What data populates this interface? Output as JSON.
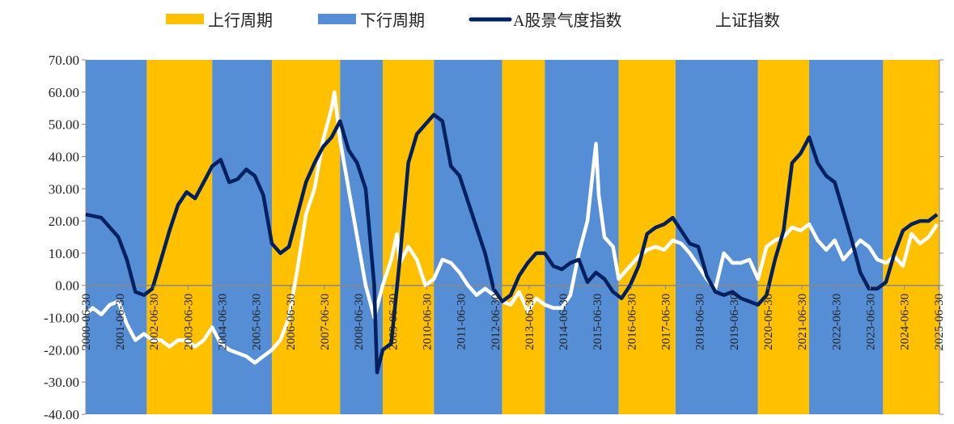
{
  "chart_data": {
    "type": "line",
    "title": "",
    "xlabel": "",
    "ylabel": "",
    "ylim": [
      -40,
      70
    ],
    "yticks": [
      "70.00",
      "60.00",
      "50.00",
      "40.00",
      "30.00",
      "20.00",
      "10.00",
      "0.00",
      "-10.00",
      "-20.00",
      "-30.00",
      "-40.00"
    ],
    "xticks": [
      "2000-06-30",
      "2001-06-30",
      "2002-06-30",
      "2003-06-30",
      "2004-06-30",
      "2005-06-30",
      "2006-06-30",
      "2007-06-30",
      "2008-06-30",
      "2009-06-30",
      "2010-06-30",
      "2011-06-30",
      "2012-06-30",
      "2013-06-30",
      "2014-06-30",
      "2015-06-30",
      "2016-06-30",
      "2017-06-30",
      "2018-06-30",
      "2019-06-30",
      "2020-06-30",
      "2021-06-30",
      "2022-06-30",
      "2023-06-30",
      "2024-06-30",
      "2025-06-30"
    ],
    "grid": false,
    "legend_position": "top",
    "legend": [
      {
        "label": "上行周期",
        "kind": "band",
        "color": "#FFC000"
      },
      {
        "label": "下行周期",
        "kind": "band",
        "color": "#558ED5"
      },
      {
        "label": "A股景气度指数",
        "kind": "line",
        "color": "#002060"
      },
      {
        "label": "上证指数",
        "kind": "line",
        "color": "#FFFFFF"
      }
    ],
    "bands": [
      {
        "start": "2000-06",
        "end": "2002-04",
        "type": "下行周期"
      },
      {
        "start": "2002-04",
        "end": "2004-03",
        "type": "上行周期"
      },
      {
        "start": "2004-03",
        "end": "2005-12",
        "type": "下行周期"
      },
      {
        "start": "2005-12",
        "end": "2007-12",
        "type": "上行周期"
      },
      {
        "start": "2007-12",
        "end": "2009-03",
        "type": "下行周期"
      },
      {
        "start": "2009-03",
        "end": "2010-09",
        "type": "上行周期"
      },
      {
        "start": "2010-09",
        "end": "2012-09",
        "type": "下行周期"
      },
      {
        "start": "2012-09",
        "end": "2013-12",
        "type": "上行周期"
      },
      {
        "start": "2013-12",
        "end": "2016-02",
        "type": "下行周期"
      },
      {
        "start": "2016-02",
        "end": "2017-10",
        "type": "上行周期"
      },
      {
        "start": "2017-10",
        "end": "2020-03",
        "type": "下行周期"
      },
      {
        "start": "2020-03",
        "end": "2021-09",
        "type": "上行周期"
      },
      {
        "start": "2021-09",
        "end": "2023-11",
        "type": "下行周期"
      },
      {
        "start": "2023-11",
        "end": "2025-07",
        "type": "上行周期"
      }
    ],
    "series": [
      {
        "name": "A股景气度指数",
        "color": "#002060",
        "points": [
          [
            "2000-06",
            22
          ],
          [
            "2000-12",
            21
          ],
          [
            "2001-06",
            15
          ],
          [
            "2001-09",
            8
          ],
          [
            "2001-12",
            -2
          ],
          [
            "2002-03",
            -3
          ],
          [
            "2002-06",
            -1
          ],
          [
            "2002-09",
            8
          ],
          [
            "2002-12",
            17
          ],
          [
            "2003-03",
            25
          ],
          [
            "2003-06",
            29
          ],
          [
            "2003-09",
            27
          ],
          [
            "2003-12",
            32
          ],
          [
            "2004-03",
            37
          ],
          [
            "2004-06",
            39
          ],
          [
            "2004-09",
            32
          ],
          [
            "2004-12",
            33
          ],
          [
            "2005-03",
            36
          ],
          [
            "2005-06",
            34
          ],
          [
            "2005-09",
            28
          ],
          [
            "2005-12",
            13
          ],
          [
            "2006-03",
            10
          ],
          [
            "2006-06",
            12
          ],
          [
            "2006-09",
            22
          ],
          [
            "2006-12",
            32
          ],
          [
            "2007-03",
            38
          ],
          [
            "2007-06",
            43
          ],
          [
            "2007-09",
            46
          ],
          [
            "2007-12",
            51
          ],
          [
            "2008-03",
            42
          ],
          [
            "2008-06",
            38
          ],
          [
            "2008-09",
            30
          ],
          [
            "2008-12",
            0
          ],
          [
            "2009-01",
            -27
          ],
          [
            "2009-03",
            -20
          ],
          [
            "2009-06",
            -18
          ],
          [
            "2009-09",
            8
          ],
          [
            "2009-12",
            38
          ],
          [
            "2010-03",
            47
          ],
          [
            "2010-06",
            50
          ],
          [
            "2010-09",
            53
          ],
          [
            "2010-12",
            51
          ],
          [
            "2011-03",
            37
          ],
          [
            "2011-06",
            34
          ],
          [
            "2011-09",
            26
          ],
          [
            "2011-12",
            18
          ],
          [
            "2012-03",
            10
          ],
          [
            "2012-06",
            -1
          ],
          [
            "2012-09",
            -5
          ],
          [
            "2012-12",
            -3
          ],
          [
            "2013-03",
            3
          ],
          [
            "2013-06",
            7
          ],
          [
            "2013-09",
            10
          ],
          [
            "2013-12",
            10
          ],
          [
            "2014-03",
            6
          ],
          [
            "2014-06",
            5
          ],
          [
            "2014-09",
            7
          ],
          [
            "2014-12",
            8
          ],
          [
            "2015-03",
            1
          ],
          [
            "2015-06",
            4
          ],
          [
            "2015-09",
            2
          ],
          [
            "2015-12",
            -2
          ],
          [
            "2016-03",
            -4
          ],
          [
            "2016-06",
            0
          ],
          [
            "2016-09",
            6
          ],
          [
            "2016-12",
            16
          ],
          [
            "2017-03",
            18
          ],
          [
            "2017-06",
            19
          ],
          [
            "2017-09",
            21
          ],
          [
            "2017-12",
            17
          ],
          [
            "2018-03",
            13
          ],
          [
            "2018-06",
            12
          ],
          [
            "2018-09",
            3
          ],
          [
            "2018-12",
            -2
          ],
          [
            "2019-03",
            -3
          ],
          [
            "2019-06",
            -2
          ],
          [
            "2019-09",
            -4
          ],
          [
            "2019-12",
            -5
          ],
          [
            "2020-03",
            -6
          ],
          [
            "2020-06",
            -3
          ],
          [
            "2020-09",
            8
          ],
          [
            "2020-12",
            17
          ],
          [
            "2021-03",
            38
          ],
          [
            "2021-06",
            41
          ],
          [
            "2021-09",
            46
          ],
          [
            "2021-12",
            38
          ],
          [
            "2022-03",
            34
          ],
          [
            "2022-06",
            32
          ],
          [
            "2022-09",
            23
          ],
          [
            "2022-12",
            14
          ],
          [
            "2023-03",
            4
          ],
          [
            "2023-06",
            -1
          ],
          [
            "2023-09",
            -1
          ],
          [
            "2023-12",
            1
          ],
          [
            "2024-03",
            10
          ],
          [
            "2024-06",
            17
          ],
          [
            "2024-09",
            19
          ],
          [
            "2024-12",
            20
          ],
          [
            "2025-03",
            20
          ],
          [
            "2025-06",
            22
          ]
        ]
      },
      {
        "name": "上证指数",
        "color": "#FFFFFF",
        "points": [
          [
            "2000-06",
            -9
          ],
          [
            "2000-09",
            -7
          ],
          [
            "2000-12",
            -9
          ],
          [
            "2001-03",
            -6
          ],
          [
            "2001-06",
            -5
          ],
          [
            "2001-09",
            -12
          ],
          [
            "2001-12",
            -17
          ],
          [
            "2002-03",
            -15
          ],
          [
            "2002-06",
            -17
          ],
          [
            "2002-09",
            -17
          ],
          [
            "2002-12",
            -19
          ],
          [
            "2003-03",
            -17
          ],
          [
            "2003-06",
            -17
          ],
          [
            "2003-09",
            -19
          ],
          [
            "2003-12",
            -17
          ],
          [
            "2004-03",
            -13
          ],
          [
            "2004-06",
            -18
          ],
          [
            "2004-09",
            -20
          ],
          [
            "2004-12",
            -21
          ],
          [
            "2005-03",
            -22
          ],
          [
            "2005-06",
            -24
          ],
          [
            "2005-09",
            -22
          ],
          [
            "2005-12",
            -20
          ],
          [
            "2006-03",
            -17
          ],
          [
            "2006-06",
            -10
          ],
          [
            "2006-09",
            5
          ],
          [
            "2006-12",
            22
          ],
          [
            "2007-03",
            30
          ],
          [
            "2007-06",
            45
          ],
          [
            "2007-09",
            55
          ],
          [
            "2007-10",
            60
          ],
          [
            "2007-12",
            45
          ],
          [
            "2008-03",
            30
          ],
          [
            "2008-06",
            15
          ],
          [
            "2008-09",
            0
          ],
          [
            "2008-12",
            -10
          ],
          [
            "2009-03",
            0
          ],
          [
            "2009-06",
            8
          ],
          [
            "2009-08",
            16
          ],
          [
            "2009-09",
            7
          ],
          [
            "2009-12",
            12
          ],
          [
            "2010-03",
            8
          ],
          [
            "2010-06",
            0
          ],
          [
            "2010-09",
            2
          ],
          [
            "2010-12",
            8
          ],
          [
            "2011-03",
            7
          ],
          [
            "2011-06",
            4
          ],
          [
            "2011-09",
            0
          ],
          [
            "2011-12",
            -3
          ],
          [
            "2012-03",
            -1
          ],
          [
            "2012-06",
            -3
          ],
          [
            "2012-09",
            -5
          ],
          [
            "2012-12",
            -6
          ],
          [
            "2013-03",
            -2
          ],
          [
            "2013-06",
            -8
          ],
          [
            "2013-09",
            -4
          ],
          [
            "2013-12",
            -6
          ],
          [
            "2014-03",
            -7
          ],
          [
            "2014-06",
            -7
          ],
          [
            "2014-09",
            -3
          ],
          [
            "2014-12",
            10
          ],
          [
            "2015-03",
            20
          ],
          [
            "2015-06",
            44
          ],
          [
            "2015-07",
            28
          ],
          [
            "2015-09",
            15
          ],
          [
            "2015-12",
            12
          ],
          [
            "2016-02",
            2
          ],
          [
            "2016-06",
            6
          ],
          [
            "2016-09",
            9
          ],
          [
            "2016-12",
            11
          ],
          [
            "2017-03",
            12
          ],
          [
            "2017-06",
            11
          ],
          [
            "2017-09",
            14
          ],
          [
            "2017-12",
            13
          ],
          [
            "2018-03",
            10
          ],
          [
            "2018-06",
            6
          ],
          [
            "2018-09",
            2
          ],
          [
            "2018-12",
            -1
          ],
          [
            "2019-03",
            10
          ],
          [
            "2019-06",
            7
          ],
          [
            "2019-09",
            7
          ],
          [
            "2019-12",
            8
          ],
          [
            "2020-03",
            2
          ],
          [
            "2020-06",
            12
          ],
          [
            "2020-09",
            14
          ],
          [
            "2020-12",
            15
          ],
          [
            "2021-03",
            18
          ],
          [
            "2021-06",
            17
          ],
          [
            "2021-09",
            19
          ],
          [
            "2021-12",
            14
          ],
          [
            "2022-03",
            11
          ],
          [
            "2022-06",
            14
          ],
          [
            "2022-09",
            8
          ],
          [
            "2022-12",
            11
          ],
          [
            "2023-03",
            14
          ],
          [
            "2023-06",
            12
          ],
          [
            "2023-09",
            8
          ],
          [
            "2023-12",
            7
          ],
          [
            "2024-03",
            9
          ],
          [
            "2024-06",
            6
          ],
          [
            "2024-09",
            16
          ],
          [
            "2024-12",
            13
          ],
          [
            "2025-03",
            15
          ],
          [
            "2025-06",
            19
          ]
        ]
      }
    ]
  }
}
